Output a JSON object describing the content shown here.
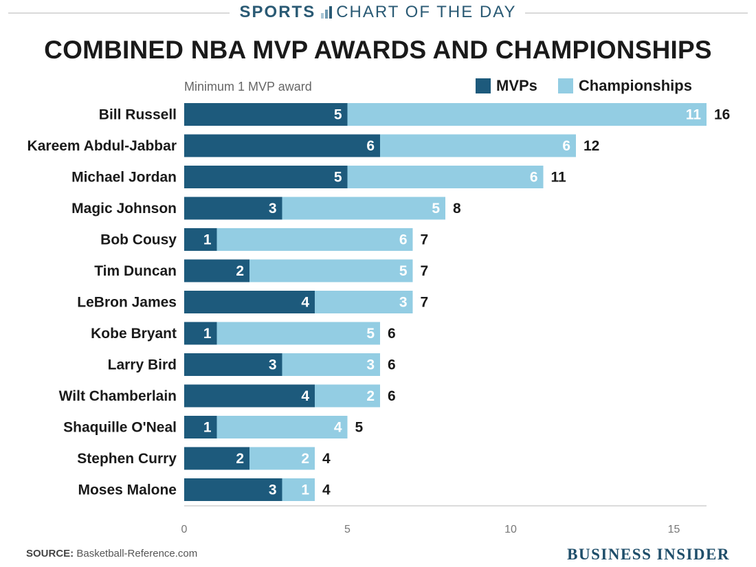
{
  "header": {
    "section": "SPORTS",
    "series_name": "CHART OF THE DAY"
  },
  "chart_data": {
    "type": "bar",
    "orientation": "horizontal",
    "stacked": true,
    "title": "COMBINED NBA MVP AWARDS AND CHAMPIONSHIPS",
    "subtitle": "Minimum 1 MVP award",
    "categories": [
      "Bill Russell",
      "Kareem Abdul-Jabbar",
      "Michael Jordan",
      "Magic Johnson",
      "Bob Cousy",
      "Tim Duncan",
      "LeBron James",
      "Kobe Bryant",
      "Larry Bird",
      "Wilt Chamberlain",
      "Shaquille O'Neal",
      "Stephen Curry",
      "Moses Malone"
    ],
    "series": [
      {
        "name": "MVPs",
        "color": "#1d5a7c",
        "values": [
          5,
          6,
          5,
          3,
          1,
          2,
          4,
          1,
          3,
          4,
          1,
          2,
          3
        ]
      },
      {
        "name": "Championships",
        "color": "#93cde3",
        "values": [
          11,
          6,
          6,
          5,
          6,
          5,
          3,
          5,
          3,
          2,
          4,
          2,
          1
        ]
      }
    ],
    "totals": [
      16,
      12,
      11,
      8,
      7,
      7,
      7,
      6,
      6,
      6,
      5,
      4,
      4
    ],
    "xlim": [
      0,
      16
    ],
    "xticks": [
      0,
      5,
      10,
      15
    ],
    "legend_position": "top-right",
    "grid": false
  },
  "footer": {
    "source_label": "SOURCE:",
    "source_text": "Basketball-Reference.com",
    "brand": "BUSINESS INSIDER"
  }
}
